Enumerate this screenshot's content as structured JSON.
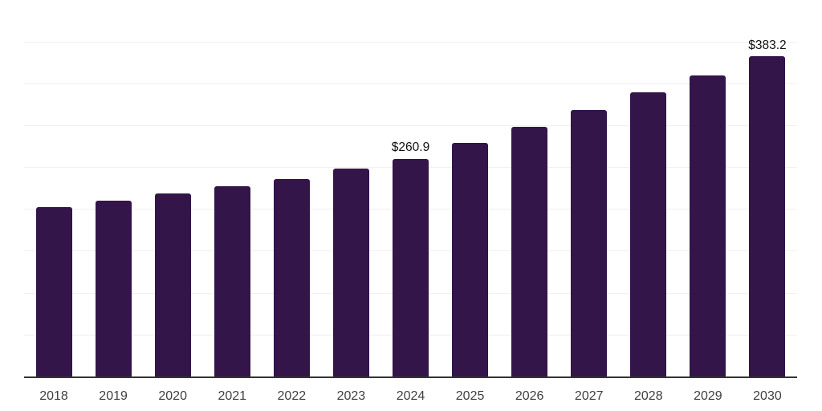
{
  "chart_data": {
    "type": "bar",
    "title": "",
    "xlabel": "",
    "ylabel": "",
    "categories": [
      "2018",
      "2019",
      "2020",
      "2021",
      "2022",
      "2023",
      "2024",
      "2025",
      "2026",
      "2027",
      "2028",
      "2029",
      "2030"
    ],
    "values": [
      203.4,
      210.7,
      219.3,
      228.2,
      236.8,
      249.0,
      260.9,
      280.1,
      299.4,
      319.2,
      340.2,
      360.7,
      383.2
    ],
    "bar_labels": [
      "",
      "",
      "",
      "",
      "",
      "",
      "$260.9",
      "",
      "",
      "",
      "",
      "",
      "$383.2"
    ],
    "ylim": [
      0,
      450
    ],
    "gridline_step_value": 50,
    "grid": "horizontal",
    "legend": "none",
    "colors": {
      "bar": "#33154a",
      "axis_line": "#333333",
      "gridline": "#f0f0f0",
      "value_label": "#111111",
      "tick_label": "#404040",
      "background": "#ffffff"
    }
  }
}
